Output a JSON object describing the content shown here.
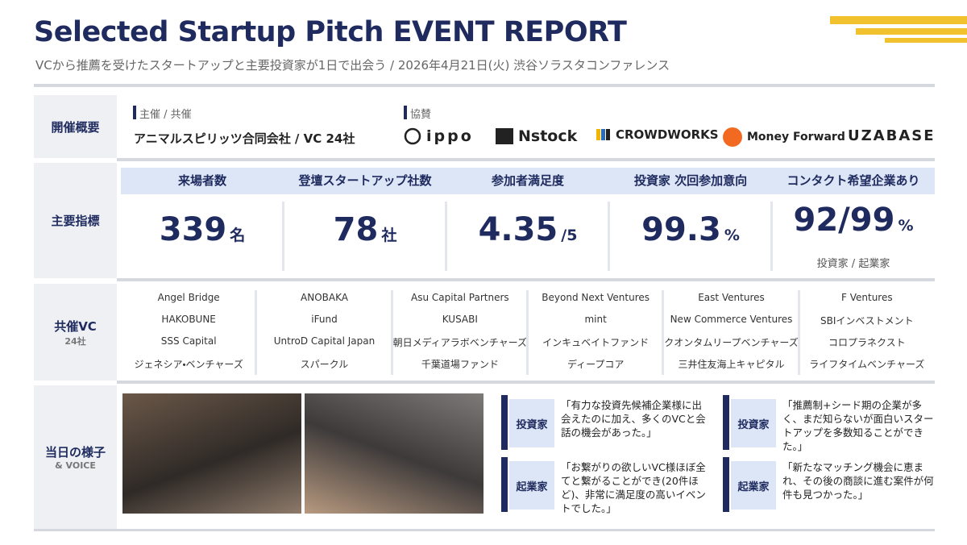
{
  "header": {
    "title": "Selected Startup Pitch EVENT REPORT",
    "subtitle": "VCから推薦を受けたスタートアップと主要投資家が1日で出会う / 2026年4月21日(火) 渋谷ソラスタコンファレンス"
  },
  "overview": {
    "label": "開催概要",
    "host_label": "主催 / 共催",
    "host": "アニマルスピリッツ合同会社 / VC 24社",
    "sponsor_label": "協賛",
    "sponsors": [
      "ippo",
      "Nstock",
      "CROWDWORKS",
      "Money Forward",
      "UZABASE"
    ]
  },
  "metrics": {
    "label": "主要指標",
    "items": [
      {
        "name": "来場者数",
        "value": 339,
        "unit": "名"
      },
      {
        "name": "登壇スタートアップ社数",
        "value": 78,
        "unit": "社"
      },
      {
        "name": "参加者満足度",
        "value": 4.35,
        "unit": "/5"
      },
      {
        "name": "投資家 次回参加意向",
        "value": 99.3,
        "unit": "%"
      },
      {
        "name": "コンタクト希望企業あり",
        "value": "92/99",
        "unit": "%",
        "note": "投資家 / 起業家"
      }
    ]
  },
  "vc": {
    "label": "共催VC",
    "count": "24社",
    "columns": [
      [
        "Angel Bridge",
        "HAKOBUNE",
        "SSS Capital",
        "ジェネシア・ベンチャーズ"
      ],
      [
        "ANOBAKA",
        "iFund",
        "UntroD Capital Japan",
        "スパークル"
      ],
      [
        "Asu Capital Partners",
        "KUSABI",
        "朝日メディアラボベンチャーズ",
        "千葉道場ファンド"
      ],
      [
        "Beyond Next Ventures",
        "mint",
        "インキュベイトファンド",
        "ディープコア"
      ],
      [
        "East Ventures",
        "New Commerce Ventures",
        "クオンタムリープベンチャーズ",
        "三井住友海上キャピタル"
      ],
      [
        "F Ventures",
        "SBIインベストメント",
        "コロプラネクスト",
        "ライフタイムベンチャーズ"
      ]
    ]
  },
  "voice": {
    "label": "当日の様子",
    "sublabel": "& VOICE",
    "quotes": [
      {
        "role": "投資家",
        "text": "「有力な投資先候補企業様に出会えたのに加え、多くのVCと会話の機会があった。」"
      },
      {
        "role": "投資家",
        "text": "「推薦制+シード期の企業が多く、まだ知らないが面白いスタートアップを多数知ることができた。」"
      },
      {
        "role": "起業家",
        "text": "「お繋がりの欲しいVC様ほぼ全てと繋がることができ(20件ほど)、非常に満足度の高いイベントでした。」"
      },
      {
        "role": "起業家",
        "text": "「新たなマッチング機会に恵まれ、その後の商談に進む案件が何件も見つかった。」"
      }
    ]
  }
}
